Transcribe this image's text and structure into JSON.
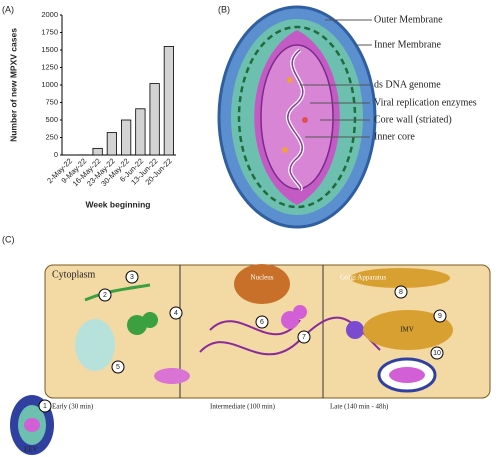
{
  "chart_data": {
    "type": "bar",
    "panel": "(A)",
    "ylabel": "Number of new MPXV cases",
    "xlabel": "Week beginning",
    "categories": [
      "2-May-22",
      "9-May-22",
      "16-May-22",
      "23-May-22",
      "30-May-22",
      "6-Jun-22",
      "13-Jun-22",
      "20-Jun-22"
    ],
    "values": [
      1,
      2,
      95,
      320,
      500,
      660,
      1020,
      1550
    ],
    "color": "#d3d3d3",
    "ylim": [
      0,
      2000
    ],
    "yticks": [
      0,
      250,
      500,
      750,
      1000,
      1250,
      1500,
      1750,
      2000
    ]
  },
  "panel_b": {
    "panel": "(B)",
    "labels": [
      "Outer Membrane",
      "Inner Membrane",
      "ds DNA genome",
      "Viral replication enzymes",
      "Core wall (striated)",
      "Inner core"
    ]
  },
  "panel_c": {
    "panel": "(C)",
    "cytoplasm": "Cytoplasm",
    "nucleus": "Nucleus",
    "golgi": "Golgi Apparatus",
    "imv": "IMV",
    "eev": "EEV",
    "phases": [
      "Early (30 min)",
      "Intermediate (100 min)",
      "Late (140 min - 48h)"
    ],
    "steps": [
      "1",
      "2",
      "3",
      "4",
      "5",
      "6",
      "7",
      "8",
      "9",
      "10"
    ]
  }
}
